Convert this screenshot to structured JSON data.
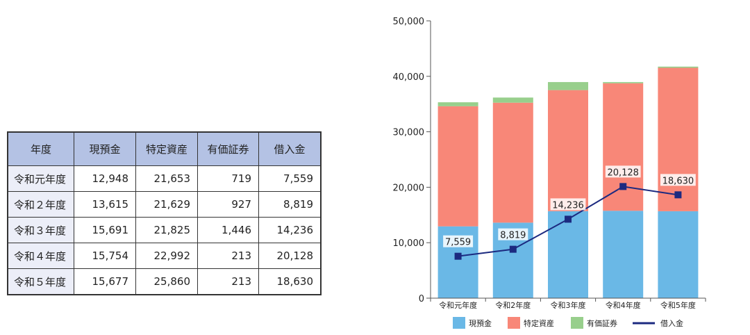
{
  "table": {
    "headers": [
      "年度",
      "現預金",
      "特定資産",
      "有価証券",
      "借入金"
    ],
    "rows": [
      [
        "令和元年度",
        "12,948",
        "21,653",
        "719",
        "7,559"
      ],
      [
        "令和２年度",
        "13,615",
        "21,629",
        "927",
        "8,819"
      ],
      [
        "令和３年度",
        "15,691",
        "21,825",
        "1,446",
        "14,236"
      ],
      [
        "令和４年度",
        "15,754",
        "22,992",
        "213",
        "20,128"
      ],
      [
        "令和５年度",
        "15,677",
        "25,860",
        "213",
        "18,630"
      ]
    ]
  },
  "chart_data": {
    "type": "bar",
    "stacked": true,
    "categories": [
      "令和元年度",
      "令和2年度",
      "令和3年度",
      "令和4年度",
      "令和5年度"
    ],
    "series": [
      {
        "name": "現預金",
        "kind": "bar",
        "color": "#6ab8e6",
        "values": [
          12948,
          13615,
          15691,
          15754,
          15677
        ]
      },
      {
        "name": "特定資産",
        "kind": "bar",
        "color": "#f88778",
        "values": [
          21653,
          21629,
          21825,
          22992,
          25860
        ]
      },
      {
        "name": "有価証券",
        "kind": "bar",
        "color": "#98cf8c",
        "values": [
          719,
          927,
          1446,
          213,
          213
        ]
      },
      {
        "name": "借入金",
        "kind": "line",
        "color": "#1c2a80",
        "values": [
          7559,
          8819,
          14236,
          20128,
          18630
        ],
        "labels": [
          "7,559",
          "8,819",
          "14,236",
          "20,128",
          "18,630"
        ]
      }
    ],
    "y_ticks": [
      "0",
      "10,000",
      "20,000",
      "30,000",
      "40,000",
      "50,000"
    ],
    "ylim": [
      0,
      50000
    ],
    "legend": "bottom"
  }
}
